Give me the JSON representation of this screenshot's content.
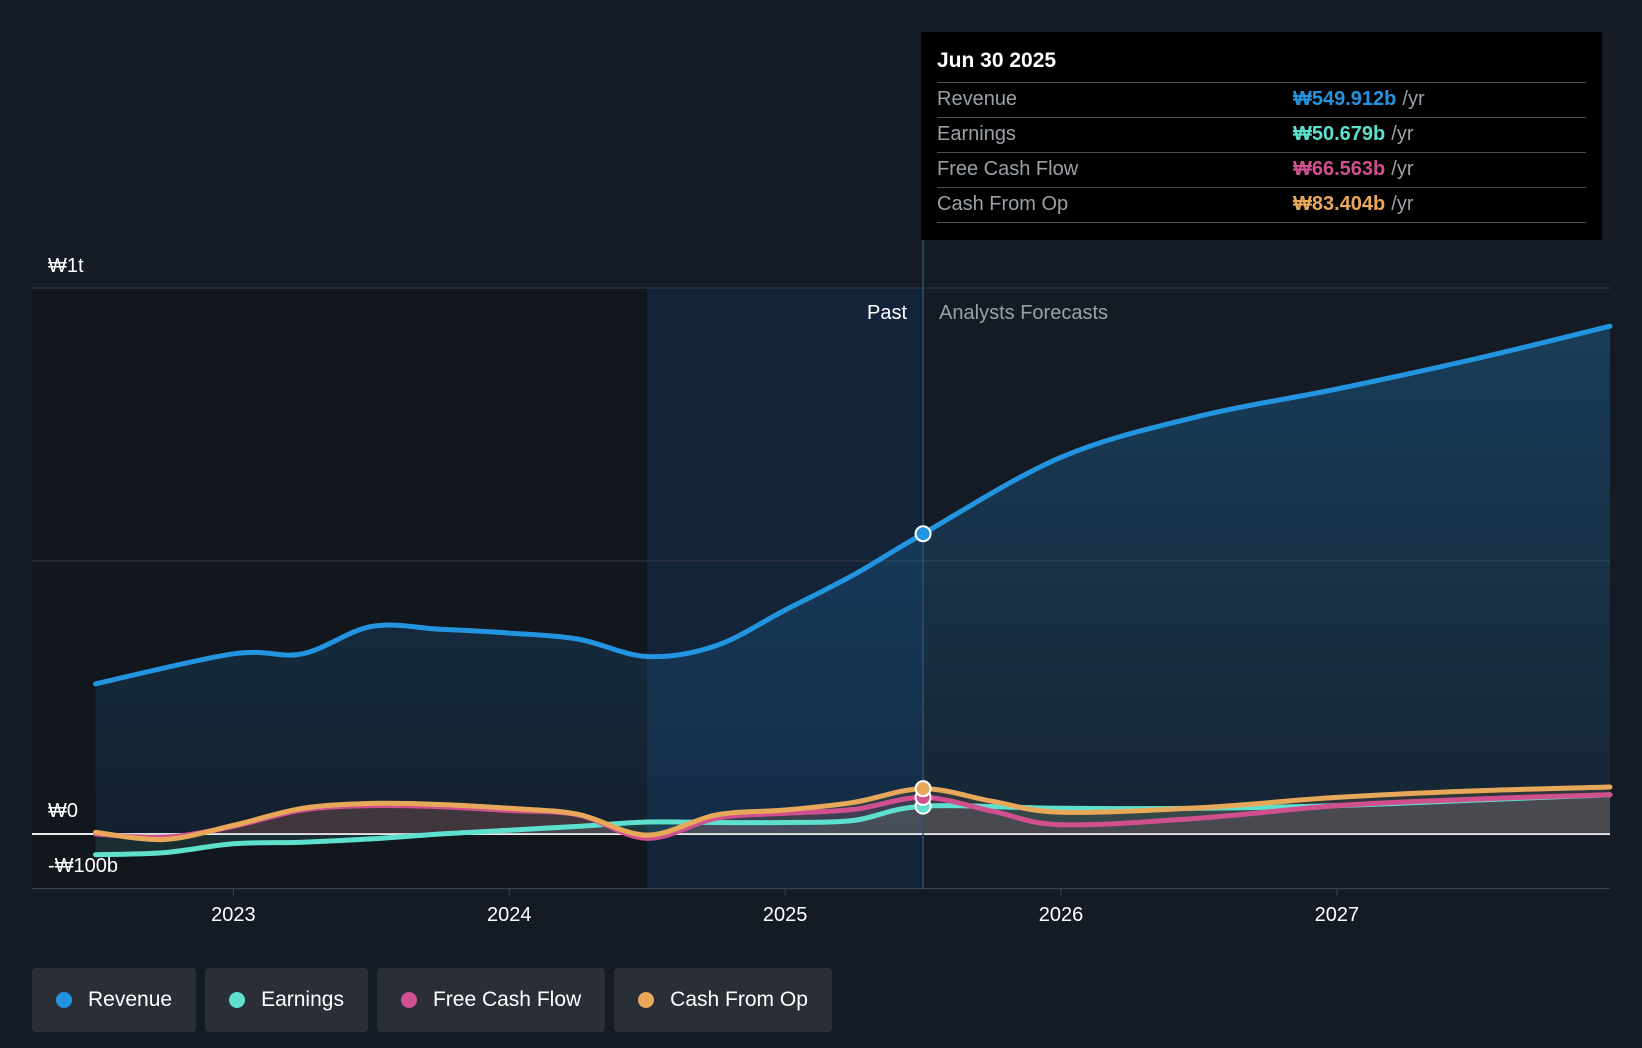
{
  "chart_data": {
    "type": "line",
    "currency_unit": "₩ billions",
    "x_unit": "year",
    "xlim": [
      2022.27,
      2027.99
    ],
    "ylim": [
      -100,
      1000
    ],
    "y_tick_labels": [
      {
        "value": 1000,
        "label": "₩1t"
      },
      {
        "value": 0,
        "label": "₩0"
      },
      {
        "value": -100,
        "label": "-₩100b"
      }
    ],
    "gridlines": [
      1000,
      500,
      0,
      -100
    ],
    "x_ticks": [
      {
        "value": 2023,
        "label": "2023"
      },
      {
        "value": 2024,
        "label": "2024"
      },
      {
        "value": 2025,
        "label": "2025"
      },
      {
        "value": 2026,
        "label": "2026"
      },
      {
        "value": 2027,
        "label": "2027"
      }
    ],
    "past_shade_start": 2024.5,
    "divider_x": 2025.5,
    "past_label": "Past",
    "forecast_label": "Analysts Forecasts",
    "series": [
      {
        "name": "Revenue",
        "color": "#2394e0",
        "points": [
          [
            2022.5,
            275
          ],
          [
            2023,
            330
          ],
          [
            2023.25,
            330
          ],
          [
            2023.5,
            380
          ],
          [
            2023.75,
            375
          ],
          [
            2024,
            368
          ],
          [
            2024.25,
            357
          ],
          [
            2024.5,
            325
          ],
          [
            2024.75,
            345
          ],
          [
            2025,
            410
          ],
          [
            2025.25,
            475
          ],
          [
            2025.5,
            550
          ],
          [
            2026,
            690
          ],
          [
            2026.5,
            765
          ],
          [
            2027,
            815
          ],
          [
            2027.5,
            870
          ],
          [
            2027.99,
            930
          ]
        ]
      },
      {
        "name": "Earnings",
        "color": "#5ee0cf",
        "points": [
          [
            2022.5,
            -38
          ],
          [
            2022.75,
            -34
          ],
          [
            2023,
            -18
          ],
          [
            2023.25,
            -15
          ],
          [
            2023.5,
            -9
          ],
          [
            2023.75,
            0
          ],
          [
            2024,
            7
          ],
          [
            2024.25,
            14
          ],
          [
            2024.5,
            22
          ],
          [
            2024.75,
            21
          ],
          [
            2025,
            21
          ],
          [
            2025.25,
            25
          ],
          [
            2025.5,
            51
          ],
          [
            2026,
            47
          ],
          [
            2026.5,
            47
          ],
          [
            2027,
            52
          ],
          [
            2027.5,
            62
          ],
          [
            2027.99,
            72
          ]
        ]
      },
      {
        "name": "Free Cash Flow",
        "color": "#d0508f",
        "points": [
          [
            2022.5,
            0
          ],
          [
            2022.75,
            -6
          ],
          [
            2023,
            14
          ],
          [
            2023.25,
            44
          ],
          [
            2023.5,
            52
          ],
          [
            2023.75,
            50
          ],
          [
            2024,
            43
          ],
          [
            2024.25,
            35
          ],
          [
            2024.5,
            -8
          ],
          [
            2024.75,
            29
          ],
          [
            2025,
            38
          ],
          [
            2025.25,
            45
          ],
          [
            2025.5,
            67
          ],
          [
            2025.75,
            42
          ],
          [
            2026,
            17
          ],
          [
            2026.5,
            29
          ],
          [
            2027,
            52
          ],
          [
            2027.5,
            64
          ],
          [
            2027.99,
            72
          ]
        ]
      },
      {
        "name": "Cash From Op",
        "color": "#e8a85a",
        "points": [
          [
            2022.5,
            3
          ],
          [
            2022.75,
            -10
          ],
          [
            2023,
            16
          ],
          [
            2023.25,
            47
          ],
          [
            2023.5,
            56
          ],
          [
            2023.75,
            54
          ],
          [
            2024,
            47
          ],
          [
            2024.25,
            36
          ],
          [
            2024.5,
            -2
          ],
          [
            2024.75,
            35
          ],
          [
            2025,
            44
          ],
          [
            2025.25,
            58
          ],
          [
            2025.5,
            83
          ],
          [
            2025.75,
            60
          ],
          [
            2026,
            40
          ],
          [
            2026.5,
            48
          ],
          [
            2027,
            67
          ],
          [
            2027.5,
            79
          ],
          [
            2027.99,
            86
          ]
        ]
      }
    ]
  },
  "tooltip": {
    "date": "Jun 30 2025",
    "rows": [
      {
        "name": "Revenue",
        "value": "₩549.912b",
        "unit": "/yr",
        "color": "#2394e0"
      },
      {
        "name": "Earnings",
        "value": "₩50.679b",
        "unit": "/yr",
        "color": "#5ee0cf"
      },
      {
        "name": "Free Cash Flow",
        "value": "₩66.563b",
        "unit": "/yr",
        "color": "#d0508f"
      },
      {
        "name": "Cash From Op",
        "value": "₩83.404b",
        "unit": "/yr",
        "color": "#e8a85a"
      }
    ]
  },
  "legend": [
    {
      "label": "Revenue",
      "color": "#2394e0"
    },
    {
      "label": "Earnings",
      "color": "#5ee0cf"
    },
    {
      "label": "Free Cash Flow",
      "color": "#d0508f"
    },
    {
      "label": "Cash From Op",
      "color": "#e8a85a"
    }
  ]
}
